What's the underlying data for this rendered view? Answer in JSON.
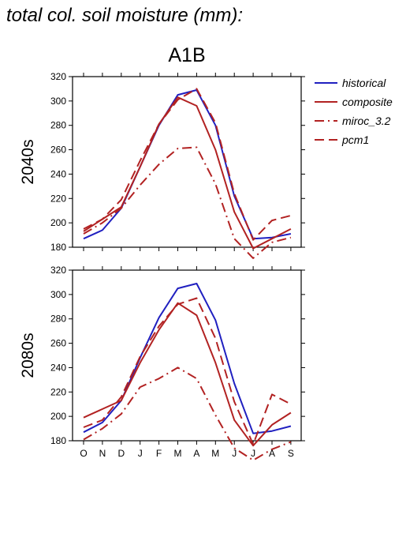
{
  "title": "total col. soil moisture (mm):",
  "scenario": "A1B",
  "chart_data": {
    "type": "line",
    "categories": [
      "O",
      "N",
      "D",
      "J",
      "F",
      "M",
      "A",
      "M",
      "J",
      "J",
      "A",
      "S"
    ],
    "ylim": [
      180,
      320
    ],
    "yticks": [
      180,
      200,
      220,
      240,
      260,
      280,
      300,
      320
    ],
    "legend": {
      "placement": "right",
      "entries": [
        {
          "name": "historical",
          "color": "#2020c0",
          "dash": "solid"
        },
        {
          "name": "composite",
          "color": "#b22222",
          "dash": "solid"
        },
        {
          "name": "miroc_3.2",
          "color": "#b22222",
          "dash": "dashdot"
        },
        {
          "name": "pcm1",
          "color": "#b22222",
          "dash": "dash"
        }
      ]
    },
    "panels": [
      {
        "label": "2040s",
        "series": [
          {
            "name": "historical",
            "values": [
              187,
              194,
              212,
              246,
              280,
              305,
              309,
              280,
              222,
              187,
              188,
              191
            ]
          },
          {
            "name": "composite",
            "values": [
              193,
              203,
              213,
              246,
              281,
              303,
              296,
              260,
              209,
              179,
              187,
              195
            ]
          },
          {
            "name": "miroc_3.2",
            "values": [
              191,
              200,
              212,
              231,
              248,
              261,
              262,
              232,
              187,
              171,
              184,
              188
            ]
          },
          {
            "name": "pcm1",
            "values": [
              195,
              203,
              219,
              251,
              281,
              301,
              310,
              282,
              224,
              186,
              202,
              206
            ]
          }
        ]
      },
      {
        "label": "2080s",
        "series": [
          {
            "name": "historical",
            "values": [
              187,
              195,
              213,
              248,
              281,
              305,
              309,
              279,
              227,
              186,
              188,
              192
            ]
          },
          {
            "name": "composite",
            "values": [
              199,
              206,
              213,
              244,
              271,
              293,
              283,
              244,
              197,
              176,
              193,
              203
            ]
          },
          {
            "name": "miroc_3.2",
            "values": [
              181,
              190,
              202,
              224,
              231,
              240,
              231,
              201,
              174,
              164,
              173,
              179
            ]
          },
          {
            "name": "pcm1",
            "values": [
              191,
              197,
              216,
              249,
              274,
              292,
              297,
              264,
              212,
              177,
              218,
              210
            ]
          }
        ]
      }
    ]
  }
}
